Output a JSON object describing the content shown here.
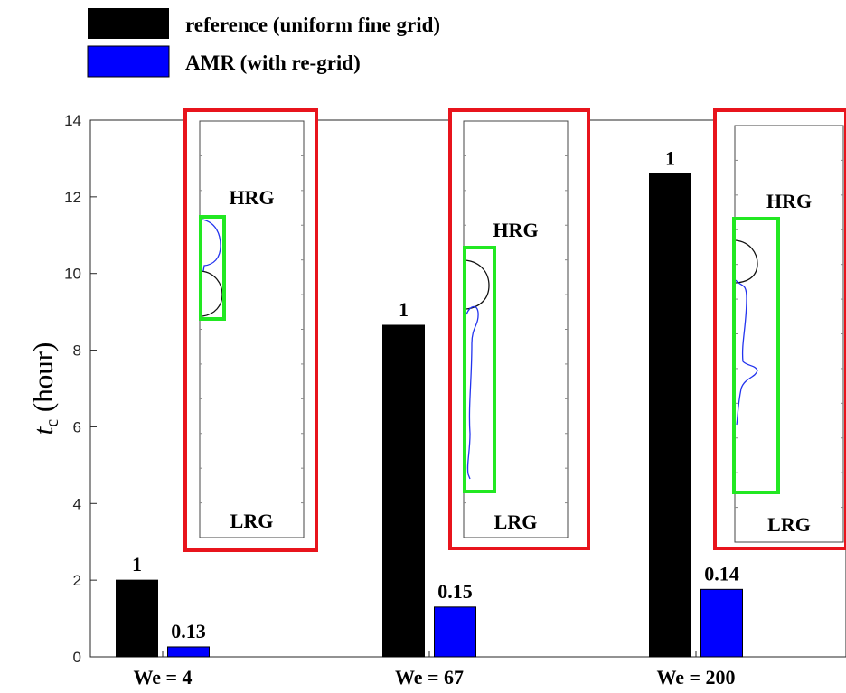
{
  "chart_data": {
    "type": "bar",
    "categories": [
      "We = 4",
      "We = 67",
      "We = 200"
    ],
    "series": [
      {
        "name": "reference (uniform fine grid)",
        "color": "#000000",
        "values": [
          2.0,
          8.65,
          12.6
        ],
        "labels": [
          "1",
          "1",
          "1"
        ]
      },
      {
        "name": "AMR (with re-grid)",
        "color": "#0000ff",
        "values": [
          0.26,
          1.3,
          1.76
        ],
        "labels": [
          "0.13",
          "0.15",
          "0.14"
        ]
      }
    ],
    "ylabel": {
      "main": "t",
      "sub": "c",
      "unit": " (hour)"
    },
    "ylim": [
      0,
      14
    ],
    "yticks": [
      0,
      2,
      4,
      6,
      8,
      10,
      12,
      14
    ],
    "grid": false,
    "legend_position": "top-left (above plot)",
    "insets": [
      {
        "category": "We = 4",
        "top_label": "HRG",
        "bottom_label": "LRG"
      },
      {
        "category": "We = 67",
        "top_label": "HRG",
        "bottom_label": "LRG"
      },
      {
        "category": "We = 200",
        "top_label": "HRG",
        "bottom_label": "LRG"
      }
    ],
    "inset_frame_color": "#e8141c",
    "inset_zone_color": "#22e822"
  }
}
